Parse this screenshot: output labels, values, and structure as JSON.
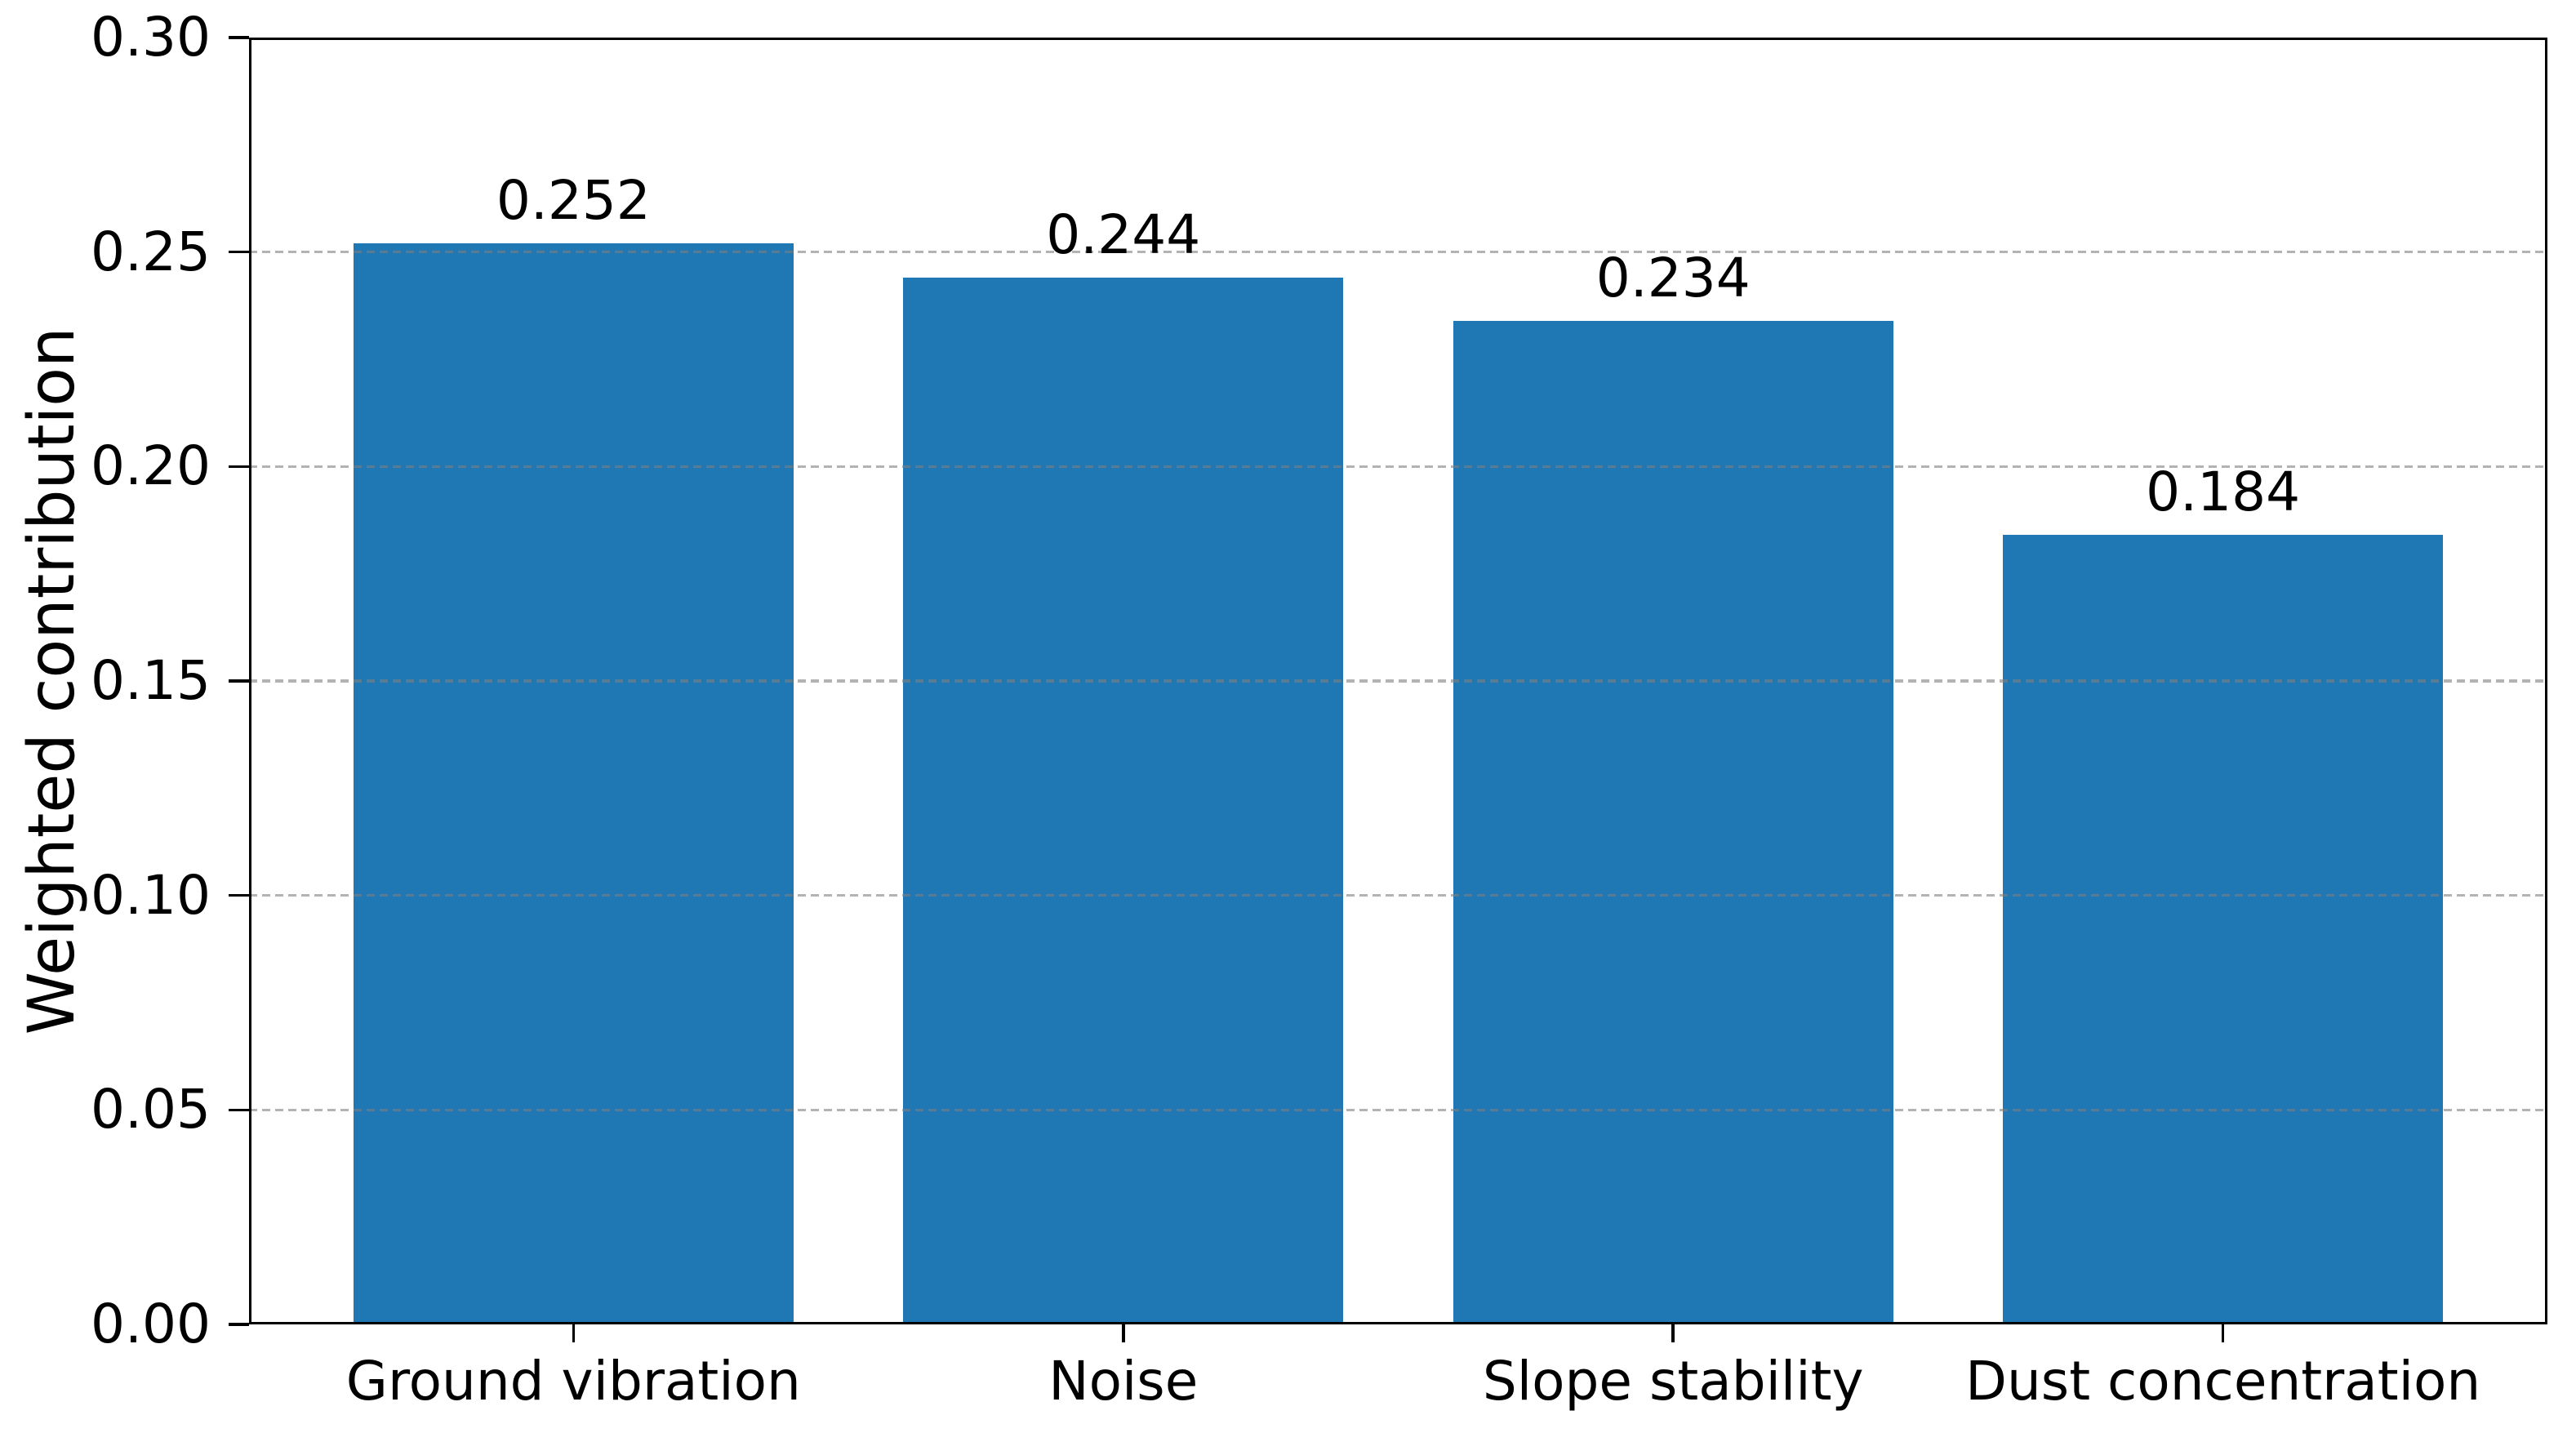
{
  "chart_data": {
    "type": "bar",
    "title": "",
    "xlabel": "",
    "ylabel": "Weighted contribution",
    "categories": [
      "Ground vibration",
      "Noise",
      "Slope stability",
      "Dust concentration"
    ],
    "values": [
      0.252,
      0.244,
      0.234,
      0.184
    ],
    "value_labels": [
      "0.252",
      "0.244",
      "0.234",
      "0.184"
    ],
    "ylim": [
      0.0,
      0.3
    ],
    "yticks": [
      0.0,
      0.05,
      0.1,
      0.15,
      0.2,
      0.25,
      0.3
    ],
    "ytick_labels": [
      "0.00",
      "0.05",
      "0.10",
      "0.15",
      "0.20",
      "0.25",
      "0.30"
    ],
    "grid": "horizontal dashed gridlines drawn above bars",
    "legend_position": "none",
    "colors": {
      "bar": "#1f77b4",
      "grid": "#808080",
      "grid_alpha": 0.6,
      "axis": "#000000",
      "text": "#000000",
      "background": "#ffffff"
    }
  }
}
